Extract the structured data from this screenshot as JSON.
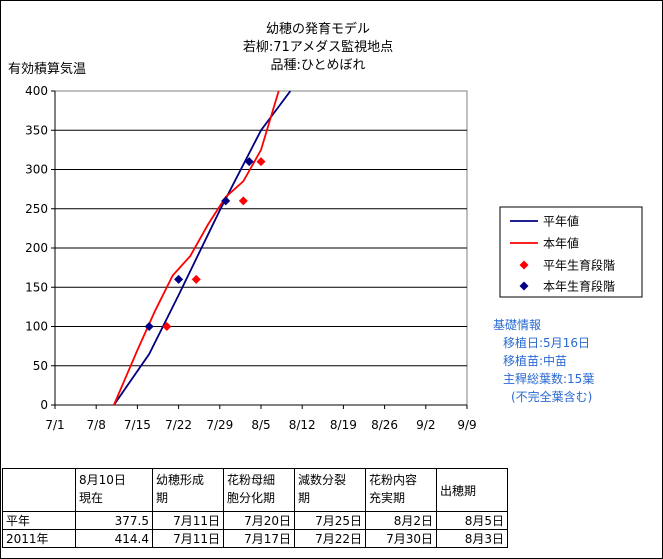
{
  "chart_data": {
    "type": "line",
    "title_lines": [
      "幼穂の発育モデル",
      "若柳:71アメダス監視地点",
      "品種:ひとめぼれ"
    ],
    "ylabel": "有効積算気温",
    "xlabel": "",
    "x_ticks": [
      "7/1",
      "7/8",
      "7/15",
      "7/22",
      "7/29",
      "8/5",
      "8/12",
      "8/19",
      "8/26",
      "9/2",
      "9/9"
    ],
    "y_ticks": [
      "0",
      "50",
      "100",
      "150",
      "200",
      "250",
      "300",
      "350",
      "400"
    ],
    "xlim_days": [
      0,
      70
    ],
    "ylim": [
      0,
      400
    ],
    "grid": "horizontal",
    "legend_position": "right",
    "series": [
      {
        "name": "平年値",
        "kind": "line",
        "color": "#000080",
        "x": [
          "7/11",
          "7/17",
          "7/22",
          "7/29",
          "8/5",
          "8/10"
        ],
        "y": [
          0,
          65,
          140,
          248,
          350,
          400
        ]
      },
      {
        "name": "本年値",
        "kind": "line",
        "color": "#ff0000",
        "x": [
          "7/11",
          "7/15",
          "7/18",
          "7/21",
          "7/24",
          "7/27",
          "7/30",
          "8/2",
          "8/5",
          "8/8"
        ],
        "y": [
          0,
          70,
          120,
          165,
          190,
          230,
          265,
          285,
          325,
          400
        ]
      },
      {
        "name": "平年生育段階",
        "kind": "points",
        "color": "#ff0000",
        "x": [
          "7/20",
          "7/25",
          "8/2",
          "8/5"
        ],
        "y": [
          100,
          160,
          260,
          310
        ]
      },
      {
        "name": "本年生育段階",
        "kind": "points",
        "color": "#000080",
        "x": [
          "7/17",
          "7/22",
          "7/30",
          "8/3"
        ],
        "y": [
          100,
          160,
          260,
          310
        ]
      }
    ]
  },
  "info": {
    "heading": "基礎情報",
    "lines": [
      "移植日:5月16日",
      "移植苗:中苗",
      "主稈総葉数:15葉",
      "(不完全葉含む)"
    ]
  },
  "table": {
    "headers": [
      "8月10日\n現在",
      "幼穂形成\n期",
      "花粉母細\n胞分化期",
      "減数分裂\n期",
      "花粉内容\n充実期",
      "出穂期"
    ],
    "rows": [
      {
        "label": "平年",
        "cells": [
          "377.5",
          "7月11日",
          "7月20日",
          "7月25日",
          "8月2日",
          "8月5日"
        ]
      },
      {
        "label": "2011年",
        "cells": [
          "414.4",
          "7月11日",
          "7月17日",
          "7月22日",
          "7月30日",
          "8月3日"
        ]
      }
    ]
  }
}
